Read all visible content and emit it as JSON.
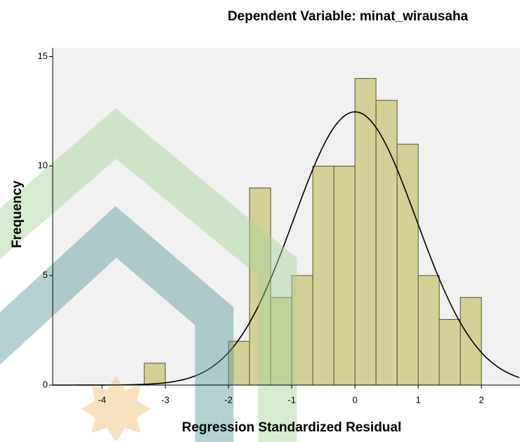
{
  "chart_data": {
    "type": "histogram",
    "title": "Dependent Variable: minat_wirausaha",
    "x_label": "Regression Standardized Residual",
    "y_label": "Frequency",
    "bins": [
      -3.333,
      -3,
      -2.667,
      -2.333,
      -2,
      -1.667,
      -1.333,
      -1,
      -0.667,
      -0.333,
      0,
      0.333,
      0.667,
      1,
      1.333,
      1.667,
      2
    ],
    "values": [
      1,
      0,
      0,
      0,
      2,
      9,
      4,
      5,
      10,
      10,
      14,
      13,
      11,
      5,
      3,
      4
    ],
    "color": "#d4cf95",
    "normal_curve": {
      "mean": 0,
      "std_dev": 0.97
    },
    "xlim": [
      -4.78,
      2.61
    ],
    "xticks": [
      -4,
      -3,
      -2,
      -1,
      0,
      1,
      2
    ],
    "ylim": [
      0,
      15.4
    ],
    "yticks": [
      0,
      5,
      10,
      15
    ]
  }
}
